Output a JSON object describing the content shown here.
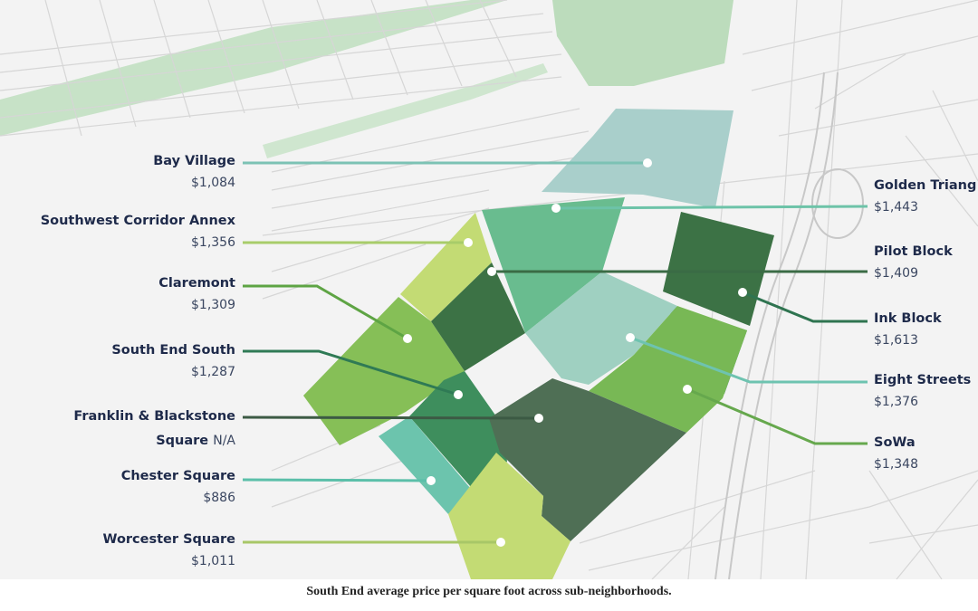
{
  "caption": "South End average price per square foot across sub-neighborhoods.",
  "colors": {
    "accent_teal": "#5fb9a6",
    "accent_green": "#6aad55",
    "accent_dark": "#2f5f45",
    "label_navy": "#1e2a4a"
  },
  "neighborhoods_left": [
    {
      "name": "Bay Village",
      "price": "$1,084",
      "fill": "#a9cfcb",
      "line": "#7cc2b4"
    },
    {
      "name": "Southwest Corridor Annex",
      "price": "$1,356",
      "fill": "#c3db74",
      "line": "#a8cc6a"
    },
    {
      "name": "Claremont",
      "price": "$1,309",
      "fill": "#86bf57",
      "line": "#5ea444"
    },
    {
      "name": "South End South",
      "price": "$1,287",
      "fill": "#3e8e5d",
      "line": "#2f7a55"
    },
    {
      "name": "Franklin & Blackstone",
      "name2": "Square",
      "price": "N/A",
      "fill": "#4f6f55",
      "line": "#3c5a44"
    },
    {
      "name": "Chester Square",
      "price": "$886",
      "fill": "#6cc4ad",
      "line": "#5bbfa9"
    },
    {
      "name": "Worcester Square",
      "price": "$1,011",
      "fill": "#c3db74",
      "line": "#a8c767"
    }
  ],
  "neighborhoods_right": [
    {
      "name": "Golden Triang",
      "price": "$1,443",
      "fill": "#69bc8f",
      "line": "#6dc3a8"
    },
    {
      "name": "Pilot Block",
      "price": "$1,409",
      "fill": "#3c7245",
      "line": "#3a6b45"
    },
    {
      "name": "Ink Block",
      "price": "$1,613",
      "fill": "#3d8a5a",
      "line": "#2f7450"
    },
    {
      "name": "Eight Streets",
      "price": "$1,376",
      "fill": "#9fd0c1",
      "line": "#6ec3b0"
    },
    {
      "name": "SoWa",
      "price": "$1,348",
      "fill": "#78b855",
      "line": "#66a84d"
    }
  ]
}
